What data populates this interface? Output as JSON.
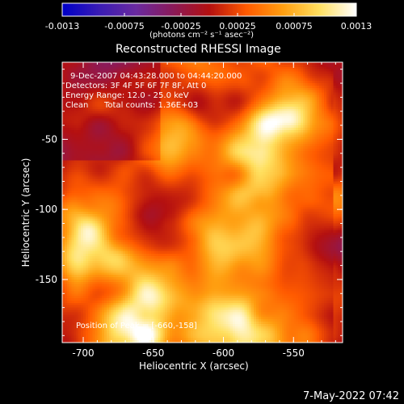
{
  "chart_data": {
    "type": "heatmap",
    "title": "Reconstructed RHESSI Image",
    "xlabel": "Heliocentric X (arcsec)",
    "ylabel": "Heliocentric Y (arcsec)",
    "x_ticks": [
      "-700",
      "-650",
      "-600",
      "-550"
    ],
    "y_ticks": [
      "-50",
      "-100",
      "-150"
    ],
    "xlim": [
      -715,
      -515
    ],
    "ylim": [
      -195,
      5
    ],
    "colorbar": {
      "ticks": [
        "-0.0013",
        "-0.00075",
        "-0.00025",
        "0.00025",
        "0.00075",
        "0.0013"
      ],
      "range": [
        -0.0013,
        0.0013
      ],
      "units_label": "(photons cm⁻² s⁻¹ asec⁻²)",
      "colormap": [
        "#0000c8",
        "#3a1cb4",
        "#6a2aa0",
        "#8a1a5a",
        "#b41010",
        "#ff5a00",
        "#ff9e10",
        "#ffe060",
        "#ffffff"
      ]
    },
    "annotations": {
      "time": "9-Dec-2007 04:43:28.000 to 04:44:20.000",
      "detectors": "Detectors: 3F 4F 5F 6F 7F 8F, Att 0",
      "energy": "Energy Range: 12.0 - 25.0 keV",
      "clean": "Clean",
      "total_counts": "Total counts: 1.36E+03",
      "peak": "Position of Peak = [-660,-158]"
    },
    "grid": false
  },
  "footer": {
    "timestamp": "7-May-2022 07:42"
  }
}
